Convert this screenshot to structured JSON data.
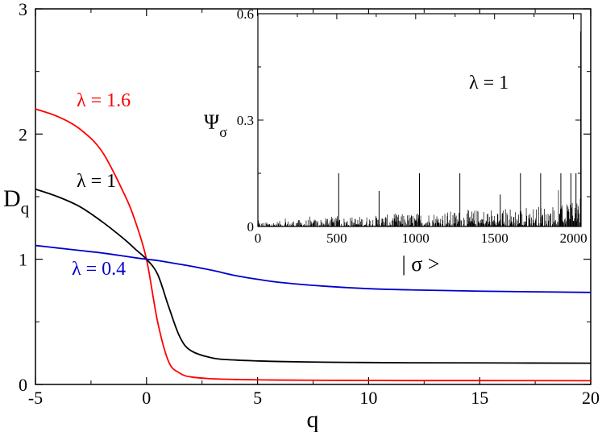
{
  "chart_data": [
    {
      "type": "line",
      "title": "",
      "xlabel": "q",
      "ylabel": {
        "main": "D",
        "sub": "q"
      },
      "xlim": [
        -5,
        20
      ],
      "ylim": [
        0,
        3
      ],
      "xticks": [
        -5,
        0,
        5,
        10,
        15,
        20
      ],
      "yticks": [
        0,
        1,
        2,
        3
      ],
      "x": [
        -5,
        -4,
        -3,
        -2,
        -1,
        -0.5,
        0,
        0.5,
        1,
        1.5,
        2,
        3,
        4,
        5,
        6,
        8,
        10,
        12,
        15,
        20
      ],
      "series": [
        {
          "name": "λ = 1.6",
          "label": "λ = 1.6",
          "color": "#ff0000",
          "values": [
            2.2,
            2.14,
            2.04,
            1.86,
            1.52,
            1.3,
            1.0,
            0.5,
            0.18,
            0.09,
            0.06,
            0.045,
            0.04,
            0.037,
            0.035,
            0.033,
            0.032,
            0.031,
            0.031,
            0.03
          ]
        },
        {
          "name": "λ = 1",
          "label": "λ = 1",
          "color": "#000000",
          "values": [
            1.56,
            1.5,
            1.42,
            1.3,
            1.16,
            1.08,
            1.0,
            0.88,
            0.62,
            0.38,
            0.27,
            0.21,
            0.195,
            0.188,
            0.183,
            0.178,
            0.175,
            0.173,
            0.172,
            0.17
          ]
        },
        {
          "name": "λ = 0.4",
          "label": "λ = 0.4",
          "color": "#0000cc",
          "values": [
            1.11,
            1.09,
            1.07,
            1.05,
            1.025,
            1.012,
            1.0,
            0.99,
            0.975,
            0.96,
            0.945,
            0.91,
            0.87,
            0.84,
            0.815,
            0.785,
            0.765,
            0.755,
            0.745,
            0.735
          ]
        }
      ]
    },
    {
      "type": "bar",
      "title": "",
      "xlabel": "| σ >",
      "ylabel": {
        "main": "Ψ",
        "sub": "σ"
      },
      "annotation": "λ = 1",
      "xlim": [
        0,
        2048
      ],
      "ylim": [
        0,
        0.6
      ],
      "xticks": [
        0,
        500,
        1000,
        1500,
        2000
      ],
      "yticks": [
        0,
        0.3,
        0.6
      ],
      "color": "#000000",
      "peaks": [
        {
          "x": 512,
          "value": 0.15
        },
        {
          "x": 768,
          "value": 0.1
        },
        {
          "x": 1024,
          "value": 0.15
        },
        {
          "x": 1280,
          "value": 0.15
        },
        {
          "x": 1536,
          "value": 0.09
        },
        {
          "x": 1664,
          "value": 0.15
        },
        {
          "x": 1792,
          "value": 0.15
        },
        {
          "x": 1920,
          "value": 0.15
        },
        {
          "x": 1984,
          "value": 0.15
        },
        {
          "x": 2016,
          "value": 0.15
        },
        {
          "x": 2046,
          "value": 0.55
        }
      ]
    }
  ]
}
